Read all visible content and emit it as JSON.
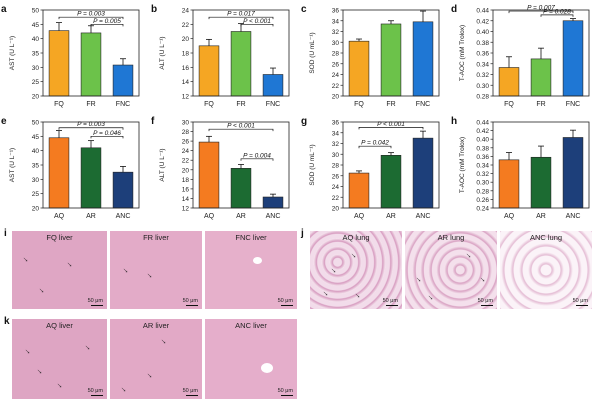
{
  "colors": {
    "F": [
      "#f5a623",
      "#6cc24a",
      "#1f77d4"
    ],
    "A": [
      "#f47b20",
      "#1c6b32",
      "#1d3f7a"
    ]
  },
  "chart_data": [
    {
      "id": "a",
      "type": "bar",
      "panel_letter": "a",
      "categories": [
        "FQ",
        "FR",
        "FNC"
      ],
      "values": [
        42.8,
        42.0,
        30.8
      ],
      "errors": [
        2.8,
        2.5,
        2.2
      ],
      "ylabel": "AST (U L⁻¹)",
      "ylim": [
        20,
        50
      ],
      "yticks": [
        "20",
        "25",
        "30",
        "35",
        "40",
        "45",
        "50"
      ],
      "sig": [
        {
          "from": 0,
          "to": 2,
          "label": "P = 0.003",
          "level": 47.5
        },
        {
          "from": 1,
          "to": 2,
          "label": "P = 0.005",
          "level": 45.0
        }
      ]
    },
    {
      "id": "b",
      "type": "bar",
      "panel_letter": "b",
      "categories": [
        "FQ",
        "FR",
        "FNC"
      ],
      "values": [
        19.0,
        21.0,
        15.0
      ],
      "errors": [
        0.9,
        1.1,
        0.9
      ],
      "ylabel": "ALT (U L⁻¹)",
      "ylim": [
        12,
        24
      ],
      "yticks": [
        "12",
        "14",
        "16",
        "18",
        "20",
        "22",
        "24"
      ],
      "sig": [
        {
          "from": 0,
          "to": 2,
          "label": "P = 0.017",
          "level": 23.0
        },
        {
          "from": 1,
          "to": 2,
          "label": "P < 0.001",
          "level": 22.0
        }
      ]
    },
    {
      "id": "c",
      "type": "bar",
      "panel_letter": "c",
      "categories": [
        "FQ",
        "FR",
        "FNC"
      ],
      "values": [
        30.2,
        33.4,
        33.8
      ],
      "errors": [
        0.4,
        0.6,
        2.0
      ],
      "ylabel": "SOD (U mL⁻¹)",
      "ylim": [
        20,
        36
      ],
      "yticks": [
        "20",
        "22",
        "24",
        "26",
        "28",
        "30",
        "32",
        "34",
        "36"
      ],
      "sig": []
    },
    {
      "id": "d",
      "type": "bar",
      "panel_letter": "d",
      "categories": [
        "FQ",
        "FR",
        "FNC"
      ],
      "values": [
        0.333,
        0.349,
        0.42
      ],
      "errors": [
        0.02,
        0.02,
        0.004
      ],
      "ylabel": "T-AOC (mM Trolox)",
      "ylim": [
        0.28,
        0.44
      ],
      "yticks": [
        "0.28",
        "0.30",
        "0.32",
        "0.34",
        "0.36",
        "0.38",
        "0.40",
        "0.42",
        "0.44"
      ],
      "sig": [
        {
          "from": 0,
          "to": 2,
          "label": "P = 0.007",
          "level": 0.438
        },
        {
          "from": 1,
          "to": 2,
          "label": "P = 0.028",
          "level": 0.431
        }
      ]
    },
    {
      "id": "e",
      "type": "bar",
      "panel_letter": "e",
      "categories": [
        "AQ",
        "AR",
        "ANC"
      ],
      "values": [
        44.5,
        41.0,
        32.5
      ],
      "errors": [
        2.5,
        2.5,
        2.0
      ],
      "ylabel": "AST (U L⁻¹)",
      "ylim": [
        20,
        50
      ],
      "yticks": [
        "20",
        "25",
        "30",
        "35",
        "40",
        "45",
        "50"
      ],
      "sig": [
        {
          "from": 0,
          "to": 2,
          "label": "P = 0.003",
          "level": 48.0
        },
        {
          "from": 1,
          "to": 2,
          "label": "P = 0.046",
          "level": 45.0
        }
      ]
    },
    {
      "id": "f",
      "type": "bar",
      "panel_letter": "f",
      "categories": [
        "AQ",
        "AR",
        "ANC"
      ],
      "values": [
        25.8,
        20.3,
        14.3
      ],
      "errors": [
        1.2,
        0.8,
        0.6
      ],
      "ylabel": "ALT (U L⁻¹)",
      "ylim": [
        12,
        30
      ],
      "yticks": [
        "12",
        "14",
        "16",
        "18",
        "20",
        "22",
        "24",
        "26",
        "28",
        "30"
      ],
      "sig": [
        {
          "from": 0,
          "to": 2,
          "label": "P < 0.001",
          "level": 28.5
        },
        {
          "from": 1,
          "to": 2,
          "label": "P = 0.004",
          "level": 22.3
        }
      ]
    },
    {
      "id": "g",
      "type": "bar",
      "panel_letter": "g",
      "categories": [
        "AQ",
        "AR",
        "ANC"
      ],
      "values": [
        26.5,
        29.8,
        33.0
      ],
      "errors": [
        0.4,
        0.5,
        1.3
      ],
      "ylabel": "SOD (U mL⁻¹)",
      "ylim": [
        20,
        36
      ],
      "yticks": [
        "20",
        "22",
        "24",
        "26",
        "28",
        "30",
        "32",
        "34",
        "36"
      ],
      "sig": [
        {
          "from": 0,
          "to": 2,
          "label": "P < 0.001",
          "level": 35.0
        },
        {
          "from": 0,
          "to": 1,
          "label": "P = 0.042",
          "level": 31.5
        }
      ]
    },
    {
      "id": "h",
      "type": "bar",
      "panel_letter": "h",
      "categories": [
        "AQ",
        "AR",
        "ANC"
      ],
      "values": [
        0.352,
        0.358,
        0.404
      ],
      "errors": [
        0.017,
        0.026,
        0.017
      ],
      "ylabel": "T-AOC (mM Trolox)",
      "ylim": [
        0.24,
        0.44
      ],
      "yticks": [
        "0.24",
        "0.26",
        "0.28",
        "0.30",
        "0.32",
        "0.34",
        "0.36",
        "0.38",
        "0.40",
        "0.42",
        "0.44"
      ],
      "sig": []
    }
  ],
  "histology": {
    "i": {
      "letter": "i",
      "images": [
        {
          "label": "FQ liver",
          "scale": "50 μm"
        },
        {
          "label": "FR liver",
          "scale": "50 μm"
        },
        {
          "label": "FNC liver",
          "scale": "50 μm"
        }
      ]
    },
    "j": {
      "letter": "j",
      "images": [
        {
          "label": "AQ lung",
          "scale": "50 μm"
        },
        {
          "label": "AR lung",
          "scale": "50 μm"
        },
        {
          "label": "ANC lung",
          "scale": "50 μm"
        }
      ]
    },
    "k": {
      "letter": "k",
      "images": [
        {
          "label": "AQ liver",
          "scale": "50 μm"
        },
        {
          "label": "AR liver",
          "scale": "50 μm"
        },
        {
          "label": "ANC liver",
          "scale": "50 μm"
        }
      ]
    }
  }
}
